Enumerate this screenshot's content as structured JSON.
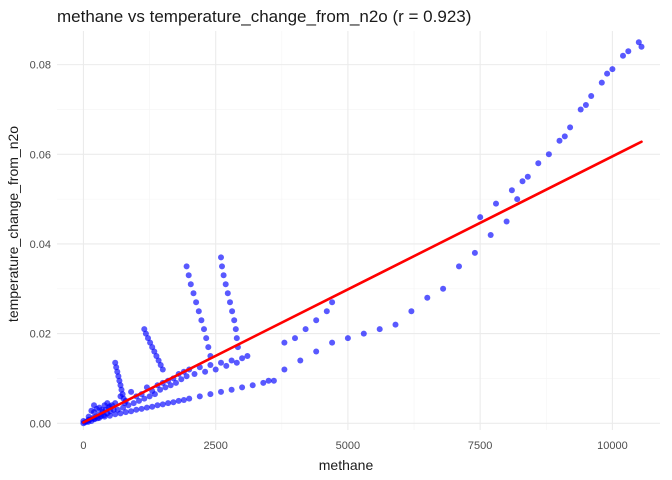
{
  "chart_data": {
    "type": "scatter",
    "title": "methane vs temperature_change_from_n2o (r = 0.923)",
    "xlabel": "methane",
    "ylabel": "temperature_change_from_n2o",
    "xlim": [
      -500,
      10900
    ],
    "ylim": [
      -0.0015,
      0.0875
    ],
    "x_ticks": [
      0,
      2500,
      5000,
      7500,
      10000
    ],
    "x_tick_labels": [
      "0",
      "2500",
      "5000",
      "7500",
      "10000"
    ],
    "y_ticks": [
      0.0,
      0.02,
      0.04,
      0.06,
      0.08
    ],
    "y_tick_labels": [
      "0.00",
      "0.02",
      "0.04",
      "0.06",
      "0.08"
    ],
    "grid": true,
    "point_color": "#0000FF",
    "fit_color": "#FF0000",
    "fit_line": {
      "x": [
        0,
        10550
      ],
      "y": [
        0.0002,
        0.0628
      ]
    },
    "points": [
      [
        0,
        0
      ],
      [
        30,
        0.0002
      ],
      [
        60,
        0.0004
      ],
      [
        90,
        0.0003
      ],
      [
        120,
        0.0008
      ],
      [
        150,
        0.0005
      ],
      [
        180,
        0.0012
      ],
      [
        210,
        0.0009
      ],
      [
        240,
        0.0015
      ],
      [
        270,
        0.0011
      ],
      [
        300,
        0.002
      ],
      [
        330,
        0.0016
      ],
      [
        360,
        0.0025
      ],
      [
        390,
        0.0018
      ],
      [
        420,
        0.003
      ],
      [
        450,
        0.0022
      ],
      [
        480,
        0.0035
      ],
      [
        510,
        0.0027
      ],
      [
        540,
        0.004
      ],
      [
        570,
        0.003
      ],
      [
        100,
        0.0015
      ],
      [
        200,
        0.0025
      ],
      [
        300,
        0.0035
      ],
      [
        400,
        0.004
      ],
      [
        200,
        0.004
      ],
      [
        350,
        0.003
      ],
      [
        450,
        0.0045
      ],
      [
        500,
        0.0038
      ],
      [
        250,
        0.0032
      ],
      [
        150,
        0.0028
      ],
      [
        600,
        0.0045
      ],
      [
        650,
        0.003
      ],
      [
        700,
        0.006
      ],
      [
        750,
        0.0035
      ],
      [
        800,
        0.005
      ],
      [
        850,
        0.004
      ],
      [
        900,
        0.007
      ],
      [
        950,
        0.0045
      ],
      [
        1000,
        0.006
      ],
      [
        1050,
        0.005
      ],
      [
        1100,
        0.0065
      ],
      [
        1150,
        0.0055
      ],
      [
        1200,
        0.008
      ],
      [
        1250,
        0.006
      ],
      [
        1300,
        0.0072
      ],
      [
        1350,
        0.0065
      ],
      [
        1400,
        0.0085
      ],
      [
        1450,
        0.0075
      ],
      [
        1500,
        0.009
      ],
      [
        1550,
        0.008
      ],
      [
        1600,
        0.0095
      ],
      [
        1650,
        0.0085
      ],
      [
        1700,
        0.01
      ],
      [
        1750,
        0.009
      ],
      [
        1800,
        0.011
      ],
      [
        1850,
        0.0098
      ],
      [
        1900,
        0.0115
      ],
      [
        1950,
        0.0105
      ],
      [
        2000,
        0.012
      ],
      [
        2100,
        0.011
      ],
      [
        2200,
        0.0125
      ],
      [
        2300,
        0.0115
      ],
      [
        2400,
        0.013
      ],
      [
        2500,
        0.012
      ],
      [
        2600,
        0.0135
      ],
      [
        2700,
        0.0128
      ],
      [
        2800,
        0.014
      ],
      [
        2900,
        0.0135
      ],
      [
        3000,
        0.0145
      ],
      [
        3100,
        0.015
      ],
      [
        600,
        0.0135
      ],
      [
        620,
        0.0125
      ],
      [
        640,
        0.0115
      ],
      [
        660,
        0.0105
      ],
      [
        680,
        0.0095
      ],
      [
        700,
        0.0085
      ],
      [
        720,
        0.0075
      ],
      [
        740,
        0.0065
      ],
      [
        760,
        0.0055
      ],
      [
        780,
        0.0045
      ],
      [
        1150,
        0.021
      ],
      [
        1180,
        0.02
      ],
      [
        1220,
        0.019
      ],
      [
        1260,
        0.018
      ],
      [
        1300,
        0.017
      ],
      [
        1340,
        0.016
      ],
      [
        1380,
        0.015
      ],
      [
        1420,
        0.014
      ],
      [
        1460,
        0.013
      ],
      [
        1500,
        0.012
      ],
      [
        1950,
        0.035
      ],
      [
        1990,
        0.033
      ],
      [
        2030,
        0.031
      ],
      [
        2080,
        0.029
      ],
      [
        2130,
        0.027
      ],
      [
        2180,
        0.025
      ],
      [
        2230,
        0.023
      ],
      [
        2280,
        0.021
      ],
      [
        2320,
        0.019
      ],
      [
        2360,
        0.017
      ],
      [
        2400,
        0.015
      ],
      [
        2600,
        0.037
      ],
      [
        2620,
        0.035
      ],
      [
        2650,
        0.033
      ],
      [
        2690,
        0.031
      ],
      [
        2730,
        0.029
      ],
      [
        2770,
        0.027
      ],
      [
        2810,
        0.025
      ],
      [
        2850,
        0.023
      ],
      [
        2880,
        0.021
      ],
      [
        2900,
        0.019
      ],
      [
        2920,
        0.017
      ],
      [
        0,
        0.0005
      ],
      [
        100,
        0.0008
      ],
      [
        200,
        0.001
      ],
      [
        300,
        0.0012
      ],
      [
        400,
        0.0015
      ],
      [
        500,
        0.0017
      ],
      [
        600,
        0.002
      ],
      [
        700,
        0.0022
      ],
      [
        800,
        0.0025
      ],
      [
        900,
        0.0027
      ],
      [
        1000,
        0.003
      ],
      [
        1100,
        0.0032
      ],
      [
        1200,
        0.0035
      ],
      [
        1300,
        0.0037
      ],
      [
        1400,
        0.004
      ],
      [
        1500,
        0.0042
      ],
      [
        1600,
        0.0045
      ],
      [
        1700,
        0.0047
      ],
      [
        1800,
        0.005
      ],
      [
        1900,
        0.0052
      ],
      [
        2000,
        0.0055
      ],
      [
        2200,
        0.006
      ],
      [
        2400,
        0.0065
      ],
      [
        2600,
        0.007
      ],
      [
        2800,
        0.0075
      ],
      [
        3000,
        0.008
      ],
      [
        3200,
        0.0085
      ],
      [
        3400,
        0.009
      ],
      [
        3600,
        0.0095
      ],
      [
        3800,
        0.018
      ],
      [
        4000,
        0.019
      ],
      [
        4200,
        0.021
      ],
      [
        4400,
        0.023
      ],
      [
        4600,
        0.025
      ],
      [
        4700,
        0.027
      ],
      [
        3500,
        0.0095
      ],
      [
        3800,
        0.012
      ],
      [
        4100,
        0.014
      ],
      [
        4400,
        0.016
      ],
      [
        4700,
        0.018
      ],
      [
        5000,
        0.019
      ],
      [
        5300,
        0.02
      ],
      [
        5600,
        0.021
      ],
      [
        5900,
        0.022
      ],
      [
        6200,
        0.025
      ],
      [
        6500,
        0.028
      ],
      [
        6800,
        0.03
      ],
      [
        7100,
        0.035
      ],
      [
        7400,
        0.038
      ],
      [
        7700,
        0.042
      ],
      [
        8000,
        0.045
      ],
      [
        8200,
        0.05
      ],
      [
        8400,
        0.055
      ],
      [
        8600,
        0.058
      ],
      [
        8800,
        0.06
      ],
      [
        9000,
        0.063
      ],
      [
        9200,
        0.066
      ],
      [
        9400,
        0.07
      ],
      [
        9600,
        0.073
      ],
      [
        9800,
        0.076
      ],
      [
        10000,
        0.079
      ],
      [
        10200,
        0.082
      ],
      [
        10500,
        0.085
      ],
      [
        10550,
        0.084
      ],
      [
        7500,
        0.046
      ],
      [
        7800,
        0.049
      ],
      [
        8100,
        0.052
      ],
      [
        8300,
        0.054
      ],
      [
        9100,
        0.064
      ],
      [
        9500,
        0.071
      ],
      [
        9900,
        0.078
      ],
      [
        10300,
        0.083
      ]
    ]
  }
}
